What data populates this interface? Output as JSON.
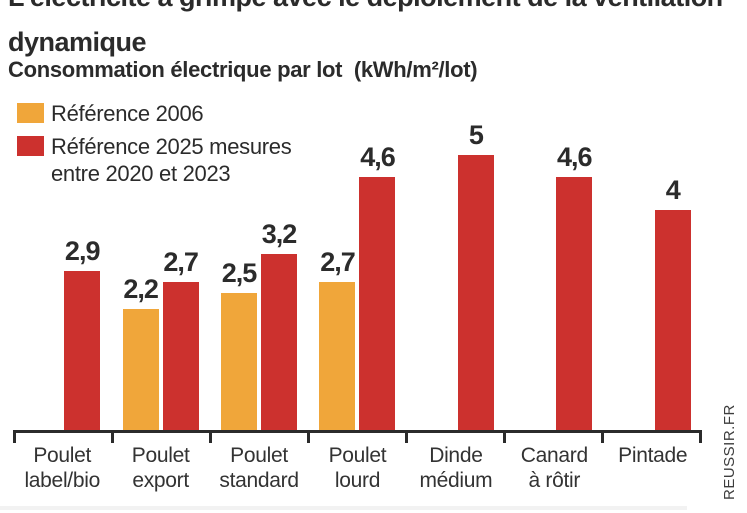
{
  "title": {
    "line1": "L'électricité a grimpé avec le déploiement de la ventilation",
    "line2": "dynamique"
  },
  "subtitle": "Consommation électrique par lot  (kWh/m²/lot)",
  "legend": [
    {
      "label": "Référence 2006",
      "color": "#F0A63A"
    },
    {
      "label": "Référence 2025 mesures entre 2020 et 2023",
      "color": "#CC312E"
    }
  ],
  "source": "REUSSIR.FR",
  "chart_data": {
    "type": "bar",
    "title": "L'électricité a grimpé avec le déploiement de la ventilation dynamique",
    "subtitle": "Consommation électrique par lot (kWh/m²/lot)",
    "unit": "kWh/m²/lot",
    "categories": [
      "Poulet label/bio",
      "Poulet export",
      "Poulet standard",
      "Poulet lourd",
      "Dinde médium",
      "Canard à rôtir",
      "Pintade"
    ],
    "categories_lines": [
      [
        "Poulet",
        "label/bio"
      ],
      [
        "Poulet",
        "export"
      ],
      [
        "Poulet",
        "standard"
      ],
      [
        "Poulet",
        "lourd"
      ],
      [
        "Dinde",
        "médium"
      ],
      [
        "Canard",
        "à rôtir"
      ],
      [
        "Pintade"
      ]
    ],
    "series": [
      {
        "name": "Référence 2006",
        "color": "#F0A63A",
        "values": [
          null,
          2.2,
          2.5,
          2.7,
          null,
          null,
          null
        ],
        "labels": [
          "",
          "2,2",
          "2,5",
          "2,7",
          "",
          "",
          ""
        ]
      },
      {
        "name": "Référence 2025 mesures entre 2020 et 2023",
        "color": "#CC312E",
        "values": [
          2.9,
          2.7,
          3.2,
          4.6,
          5,
          4.6,
          4
        ],
        "labels": [
          "2,9",
          "2,7",
          "3,2",
          "4,6",
          "5",
          "4,6",
          "4"
        ]
      }
    ],
    "ylim": [
      0,
      5.3
    ],
    "grid": false,
    "legend_position": "top-left",
    "value_labels_shown": true,
    "decimal_separator": ","
  }
}
